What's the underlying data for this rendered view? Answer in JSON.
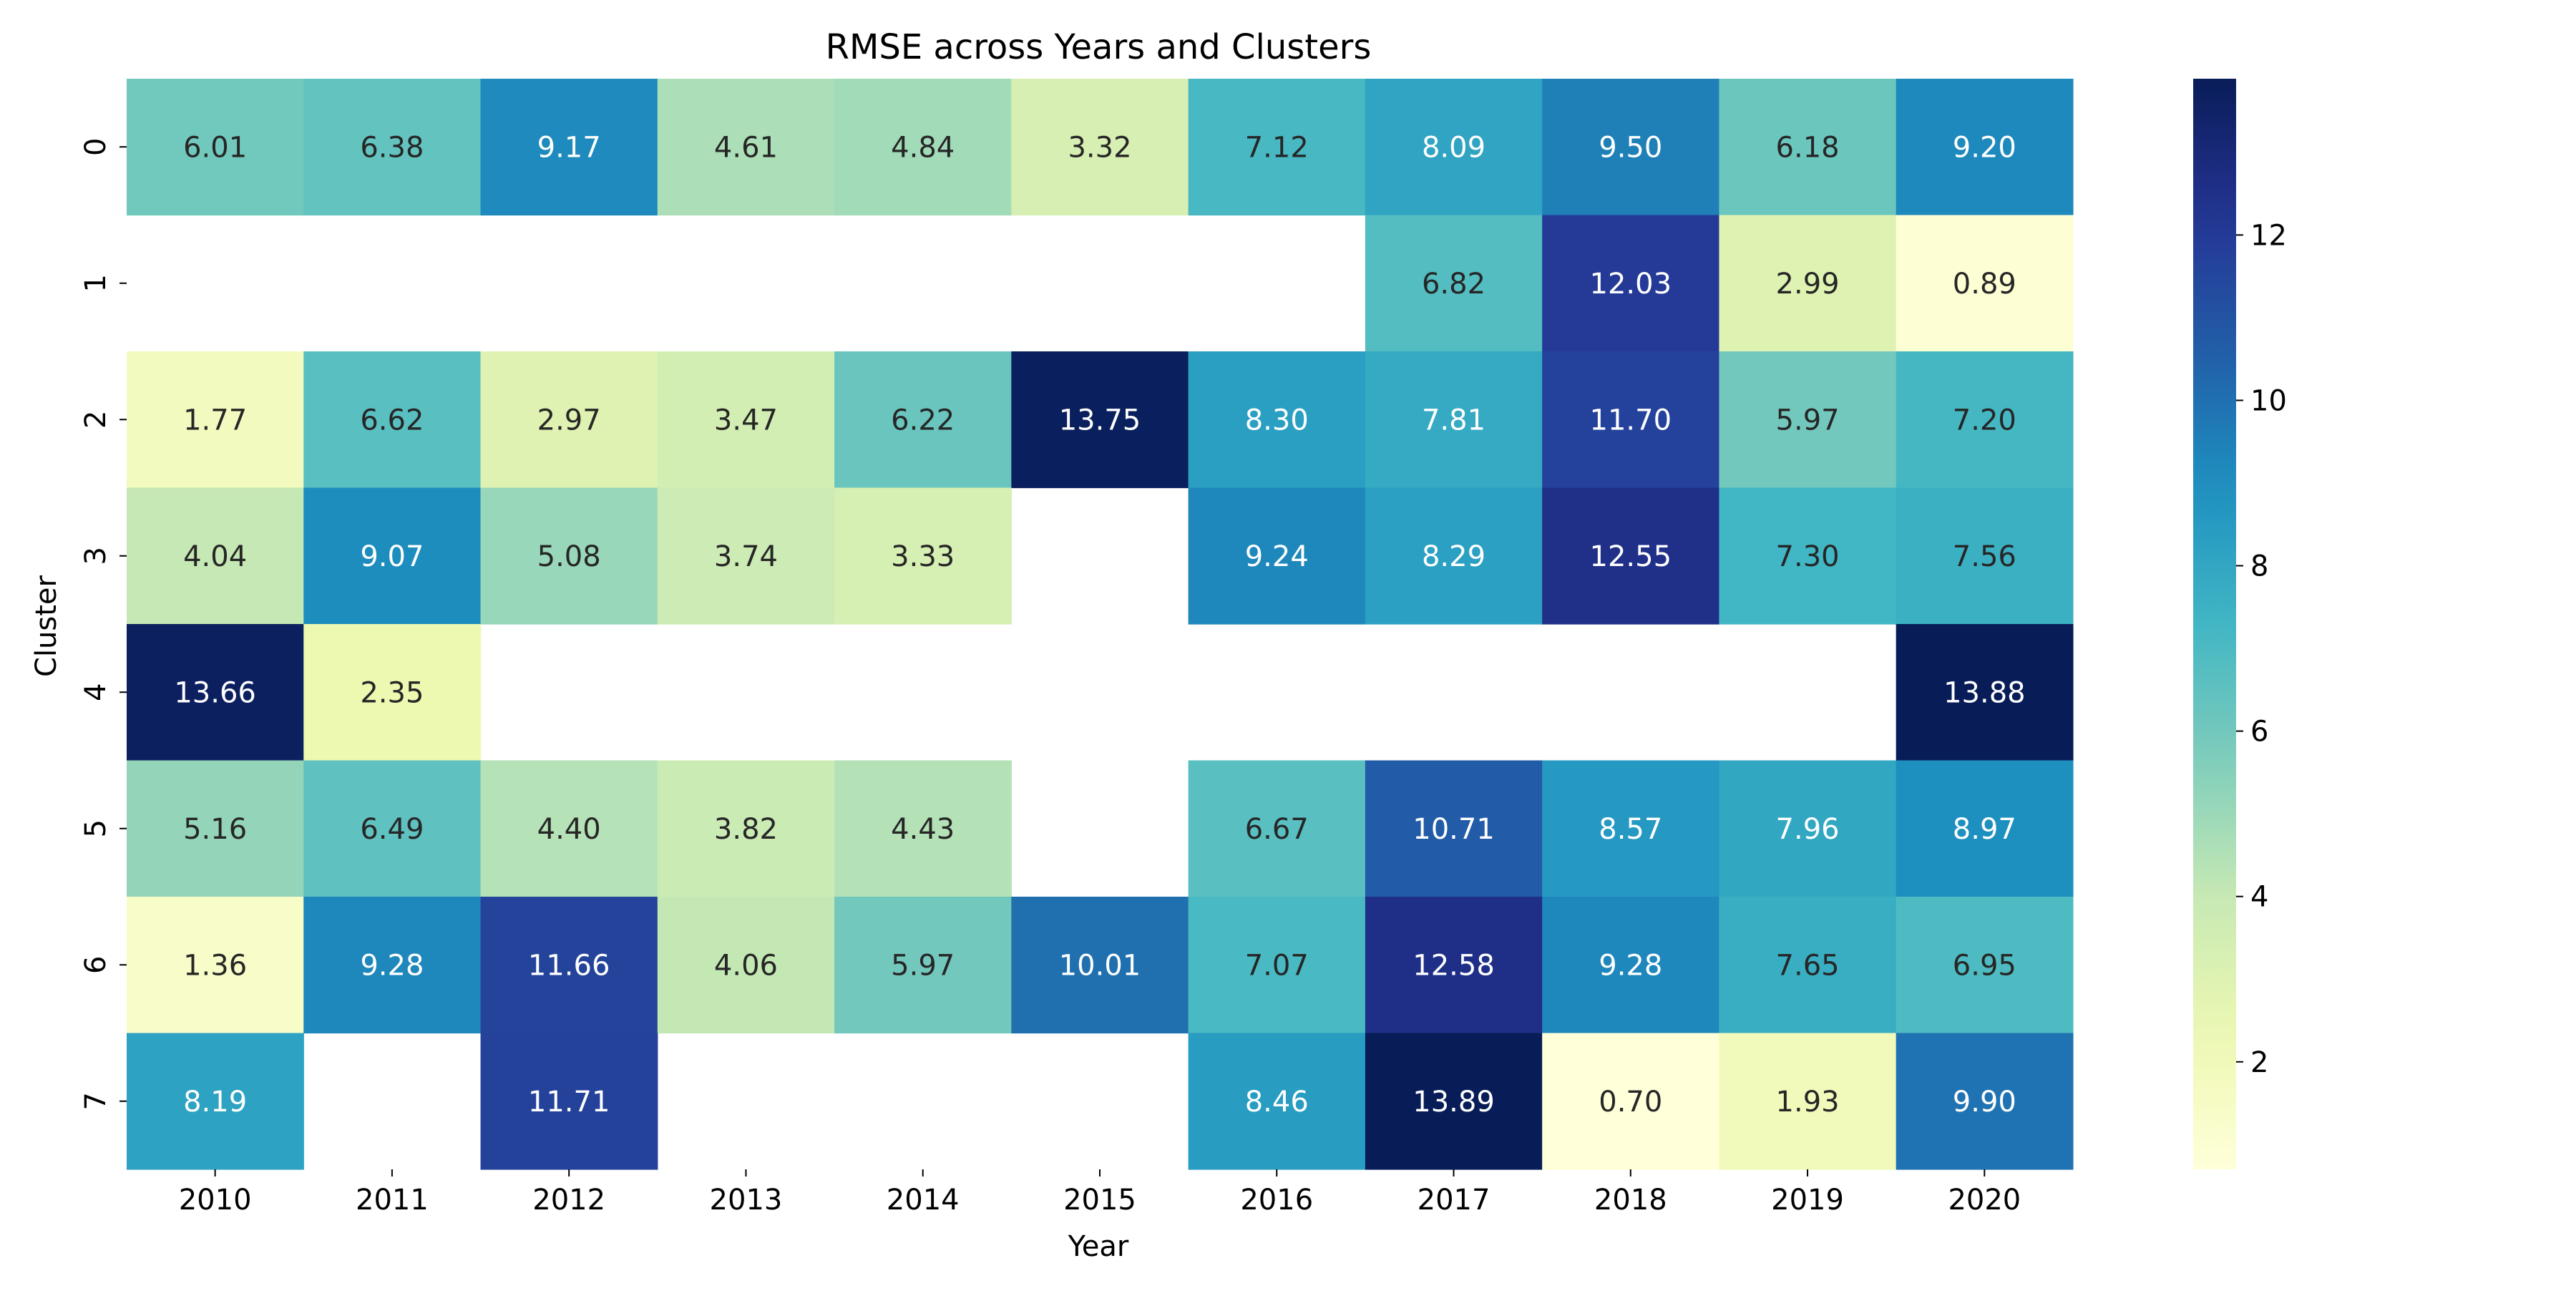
{
  "chart_data": {
    "type": "heatmap",
    "title": "RMSE across Years and Clusters",
    "xlabel": "Year",
    "ylabel": "Cluster",
    "x": [
      "2010",
      "2011",
      "2012",
      "2013",
      "2014",
      "2015",
      "2016",
      "2017",
      "2018",
      "2019",
      "2020"
    ],
    "y": [
      "0",
      "1",
      "2",
      "3",
      "4",
      "5",
      "6",
      "7"
    ],
    "values": [
      [
        6.01,
        6.38,
        9.17,
        4.61,
        4.84,
        3.32,
        7.12,
        8.09,
        9.5,
        6.18,
        9.2
      ],
      [
        null,
        null,
        null,
        null,
        null,
        null,
        null,
        6.82,
        12.03,
        2.99,
        0.89
      ],
      [
        1.77,
        6.62,
        2.97,
        3.47,
        6.22,
        13.75,
        8.3,
        7.81,
        11.7,
        5.97,
        7.2
      ],
      [
        4.04,
        9.07,
        5.08,
        3.74,
        3.33,
        null,
        9.24,
        8.29,
        12.55,
        7.3,
        7.56
      ],
      [
        13.66,
        2.35,
        null,
        null,
        null,
        null,
        null,
        null,
        null,
        null,
        13.88
      ],
      [
        5.16,
        6.49,
        4.4,
        3.82,
        4.43,
        null,
        6.67,
        10.71,
        8.57,
        7.96,
        8.97
      ],
      [
        1.36,
        9.28,
        11.66,
        4.06,
        5.97,
        10.01,
        7.07,
        12.58,
        9.28,
        7.65,
        6.95
      ],
      [
        8.19,
        null,
        11.71,
        null,
        null,
        null,
        8.46,
        13.89,
        0.7,
        1.93,
        9.9
      ]
    ],
    "colormap": "YlGnBu",
    "vmin": 0.7,
    "vmax": 13.89,
    "colorbar_ticks": [
      "2",
      "4",
      "6",
      "8",
      "10",
      "12"
    ],
    "annotate": true,
    "value_format": "2 decimals"
  }
}
